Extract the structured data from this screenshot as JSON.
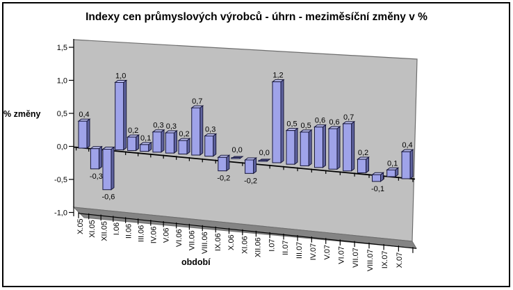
{
  "chart_data": {
    "type": "bar",
    "style": "3d-column-perspective",
    "title": "Indexy cen průmyslových výrobců - úhrn - meziměsíční změny v %",
    "xlabel": "období",
    "ylabel": "% změny",
    "categories": [
      "X.05",
      "XI.05",
      "XII.05",
      "I.06",
      "II.06",
      "III.06",
      "IV.06",
      "V.06",
      "VI.06",
      "VII.06",
      "VIII.06",
      "IX.06",
      "X.06",
      "XI.06",
      "XII.06",
      "I.07",
      "II.07",
      "III.07",
      "IV.07",
      "V.07",
      "VI.07",
      "VII.07",
      "VIII.07",
      "IX.07",
      "X.07"
    ],
    "values": [
      0.4,
      -0.3,
      -0.6,
      1.0,
      0.2,
      0.1,
      0.3,
      0.3,
      0.2,
      0.7,
      0.3,
      -0.2,
      0.0,
      -0.2,
      0.0,
      1.2,
      0.5,
      0.5,
      0.6,
      0.6,
      0.7,
      0.2,
      -0.1,
      0.1,
      0.4
    ],
    "data_labels": true,
    "decimal_separator": ",",
    "ylim": [
      -1.0,
      1.5
    ],
    "y_tick_step": 0.5,
    "y_tick_labels": [
      "1,5",
      "1,0",
      "0,5",
      "0,0",
      "-0,5",
      "-1,0"
    ],
    "legend": "none",
    "grid": "zero-line-only",
    "colors": {
      "bar_front": "#9FA3E9",
      "bar_side": "#5F639F",
      "bar_top": "#BFC2F2",
      "bar_outline": "#16163a",
      "wall": "#C0C0C0",
      "floor": "#848484",
      "wall_edge": "#6E6E6E",
      "axis": "#000000",
      "text": "#000000",
      "background": "#FFFFFF",
      "border": "#000000"
    }
  }
}
